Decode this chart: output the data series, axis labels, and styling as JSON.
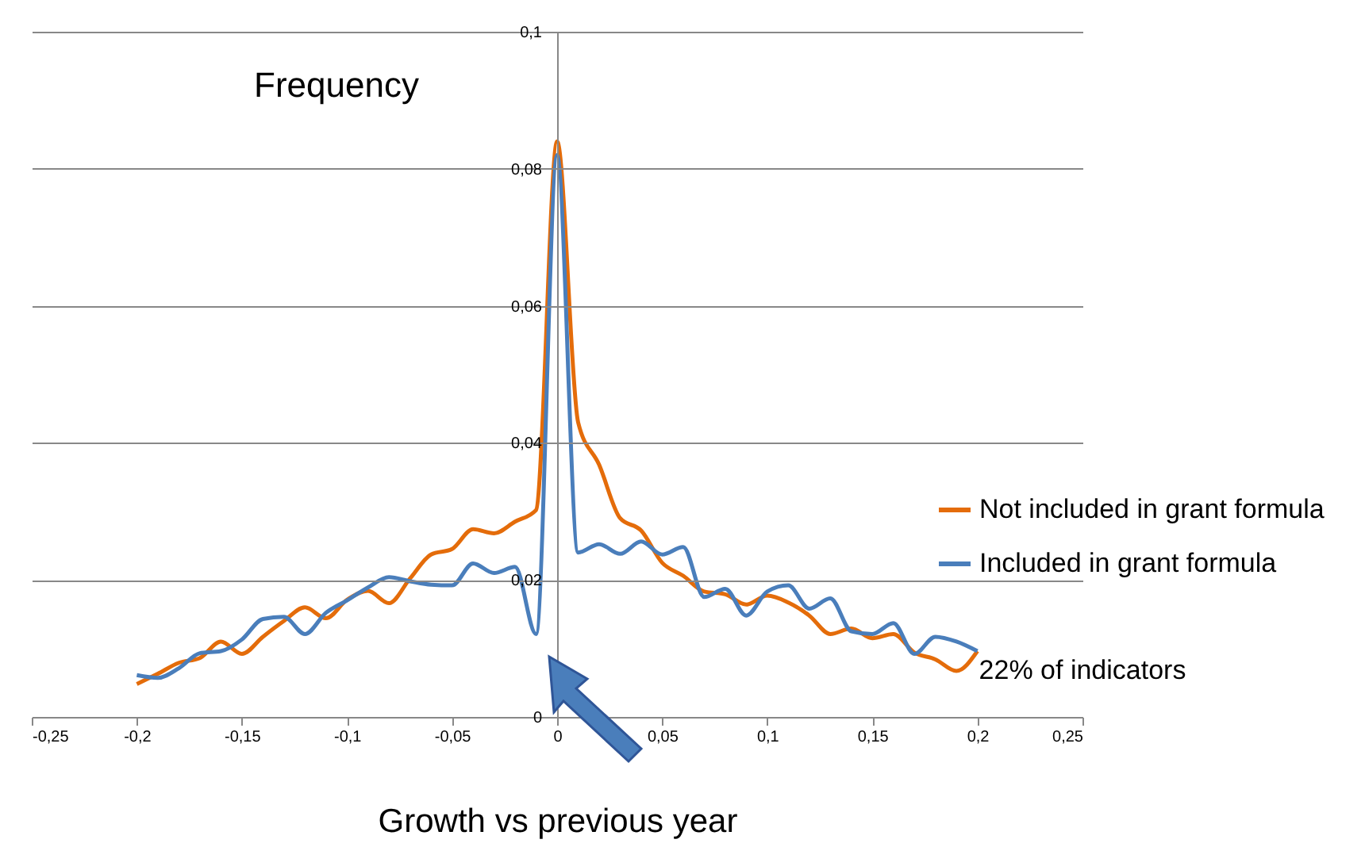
{
  "chart_data": {
    "type": "line",
    "title": "Frequency",
    "xlabel": "Growth vs previous year",
    "x": [
      -0.2,
      -0.19,
      -0.18,
      -0.17,
      -0.16,
      -0.15,
      -0.14,
      -0.13,
      -0.12,
      -0.11,
      -0.1,
      -0.09,
      -0.08,
      -0.07,
      -0.06,
      -0.05,
      -0.04,
      -0.03,
      -0.02,
      -0.01,
      0,
      0.01,
      0.02,
      0.03,
      0.04,
      0.05,
      0.06,
      0.07,
      0.08,
      0.09,
      0.1,
      0.11,
      0.12,
      0.13,
      0.14,
      0.15,
      0.16,
      0.17,
      0.18,
      0.19,
      0.2
    ],
    "series": [
      {
        "name": "Not included in grant formula",
        "color": "#e46c0a",
        "values": [
          0.0048,
          0.0063,
          0.0079,
          0.0086,
          0.011,
          0.0092,
          0.0117,
          0.014,
          0.016,
          0.0144,
          0.0171,
          0.0184,
          0.0166,
          0.0202,
          0.0237,
          0.0245,
          0.0274,
          0.0268,
          0.0285,
          0.0302,
          0.084,
          0.043,
          0.0368,
          0.029,
          0.0272,
          0.0225,
          0.0206,
          0.0183,
          0.0179,
          0.0164,
          0.0177,
          0.0167,
          0.0148,
          0.0121,
          0.0129,
          0.0115,
          0.0121,
          0.0094,
          0.0084,
          0.0067,
          0.0096
        ]
      },
      {
        "name": "Included in grant formula",
        "color": "#4a7ebb",
        "values": [
          0.0061,
          0.0057,
          0.0071,
          0.0093,
          0.0096,
          0.0113,
          0.0143,
          0.0146,
          0.0121,
          0.0152,
          0.017,
          0.0189,
          0.0204,
          0.0198,
          0.0193,
          0.0192,
          0.0224,
          0.021,
          0.0219,
          0.0121,
          0.082,
          0.024,
          0.0252,
          0.0238,
          0.0256,
          0.0237,
          0.0248,
          0.0175,
          0.0187,
          0.0148,
          0.0183,
          0.0192,
          0.0158,
          0.0173,
          0.0125,
          0.0121,
          0.0137,
          0.0092,
          0.0117,
          0.011,
          0.0096
        ]
      }
    ],
    "xlim": [
      -0.25,
      0.25
    ],
    "xticks": [
      {
        "value": -0.25,
        "label": "-0,25"
      },
      {
        "value": -0.2,
        "label": "-0,2"
      },
      {
        "value": -0.15,
        "label": "-0,15"
      },
      {
        "value": -0.1,
        "label": "-0,1"
      },
      {
        "value": -0.05,
        "label": "-0,05"
      },
      0,
      {
        "value": 0.05,
        "label": "0,05"
      },
      {
        "value": 0.1,
        "label": "0,1"
      },
      {
        "value": 0.15,
        "label": "0,15"
      },
      {
        "value": 0.2,
        "label": "0,2"
      },
      {
        "value": 0.25,
        "label": "0,25"
      }
    ],
    "ylim": [
      0,
      0.1
    ],
    "yticks": [
      0,
      {
        "value": 0.02,
        "label": "0,02"
      },
      {
        "value": 0.04,
        "label": "0,04"
      },
      {
        "value": 0.06,
        "label": "0,06"
      },
      {
        "value": 0.08,
        "label": "0,08"
      },
      {
        "value": 0.1,
        "label": "0,1"
      }
    ],
    "grid": "y",
    "legend": "right",
    "marker": "none",
    "line_style": "solid",
    "annotations": [
      "22% of indicators"
    ]
  }
}
